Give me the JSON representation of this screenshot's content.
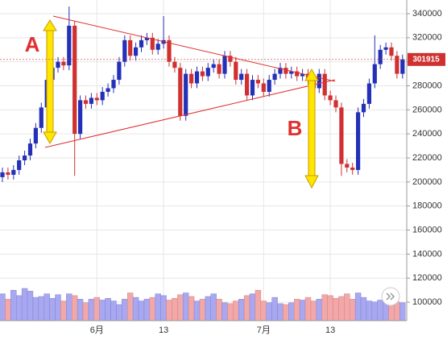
{
  "chart_data": {
    "type": "candlestick",
    "categories": [
      null,
      null,
      null,
      null,
      null,
      null,
      null,
      null,
      null,
      null,
      null,
      null,
      null,
      null,
      null,
      null,
      null,
      "6月",
      null,
      null,
      null,
      null,
      null,
      null,
      null,
      null,
      null,
      null,
      null,
      "13",
      null,
      null,
      null,
      null,
      null,
      null,
      null,
      null,
      null,
      null,
      null,
      null,
      null,
      null,
      null,
      null,
      null,
      "7月",
      null,
      null,
      null,
      null,
      null,
      null,
      null,
      null,
      null,
      null,
      null,
      "13",
      null,
      null,
      null,
      null,
      null,
      null,
      null,
      null,
      null,
      null,
      null,
      null,
      null
    ],
    "open": [
      204000,
      208000,
      206000,
      210000,
      218000,
      222000,
      232000,
      245000,
      262000,
      285000,
      295000,
      300000,
      297000,
      330000,
      240000,
      268000,
      265000,
      270000,
      268000,
      275000,
      278000,
      285000,
      300000,
      318000,
      305000,
      312000,
      318000,
      320000,
      310000,
      315000,
      318000,
      300000,
      295000,
      255000,
      290000,
      282000,
      292000,
      288000,
      295000,
      298000,
      290000,
      305000,
      300000,
      285000,
      290000,
      272000,
      285000,
      282000,
      275000,
      285000,
      290000,
      295000,
      290000,
      292000,
      288000,
      290000,
      285000,
      278000,
      290000,
      272000,
      268000,
      262000,
      215000,
      212000,
      210000,
      258000,
      265000,
      282000,
      298000,
      310000,
      312000,
      305000,
      290000
    ],
    "high": [
      212000,
      212000,
      214000,
      222000,
      226000,
      236000,
      249000,
      266000,
      289000,
      299000,
      304000,
      304000,
      346000,
      334000,
      272000,
      272000,
      274000,
      274000,
      279000,
      282000,
      289000,
      304000,
      322000,
      322000,
      316000,
      322000,
      324000,
      324000,
      319000,
      338000,
      322000,
      304000,
      299000,
      294000,
      294000,
      296000,
      296000,
      299000,
      302000,
      302000,
      309000,
      309000,
      304000,
      294000,
      294000,
      289000,
      289000,
      286000,
      289000,
      294000,
      299000,
      299000,
      296000,
      296000,
      294000,
      294000,
      289000,
      294000,
      294000,
      276000,
      272000,
      266000,
      219000,
      216000,
      262000,
      269000,
      286000,
      322000,
      314000,
      316000,
      316000,
      309000,
      306000
    ],
    "low": [
      200000,
      202000,
      202000,
      206000,
      214000,
      218000,
      228000,
      241000,
      258000,
      281000,
      291000,
      293000,
      293000,
      205000,
      236000,
      261000,
      261000,
      264000,
      264000,
      271000,
      274000,
      281000,
      296000,
      301000,
      301000,
      308000,
      314000,
      306000,
      306000,
      311000,
      296000,
      291000,
      251000,
      251000,
      278000,
      278000,
      284000,
      284000,
      291000,
      286000,
      286000,
      296000,
      281000,
      281000,
      268000,
      268000,
      278000,
      271000,
      271000,
      281000,
      286000,
      286000,
      286000,
      284000,
      284000,
      281000,
      274000,
      274000,
      268000,
      264000,
      258000,
      205000,
      208000,
      206000,
      206000,
      254000,
      261000,
      278000,
      294000,
      306000,
      301000,
      286000,
      286000
    ],
    "close": [
      208000,
      206000,
      210000,
      218000,
      222000,
      232000,
      245000,
      262000,
      285000,
      295000,
      300000,
      297000,
      330000,
      240000,
      268000,
      265000,
      270000,
      268000,
      275000,
      278000,
      285000,
      300000,
      318000,
      305000,
      312000,
      318000,
      320000,
      310000,
      315000,
      318000,
      300000,
      295000,
      255000,
      290000,
      282000,
      292000,
      288000,
      295000,
      298000,
      290000,
      305000,
      300000,
      285000,
      290000,
      272000,
      285000,
      282000,
      275000,
      285000,
      290000,
      295000,
      290000,
      292000,
      288000,
      290000,
      285000,
      278000,
      290000,
      272000,
      268000,
      262000,
      215000,
      212000,
      210000,
      258000,
      265000,
      282000,
      298000,
      310000,
      312000,
      305000,
      290000,
      301915
    ],
    "volume": [
      30,
      24,
      34,
      28,
      36,
      33,
      26,
      27,
      30,
      25,
      29,
      22,
      30,
      28,
      24,
      20,
      24,
      26,
      23,
      25,
      22,
      18,
      24,
      31,
      26,
      22,
      24,
      26,
      30,
      28,
      23,
      25,
      29,
      31,
      27,
      22,
      24,
      27,
      30,
      24,
      20,
      19,
      22,
      24,
      28,
      30,
      34,
      22,
      20,
      26,
      19,
      18,
      20,
      24,
      23,
      26,
      22,
      24,
      29,
      28,
      25,
      27,
      30,
      24,
      31,
      26,
      22,
      21,
      23,
      27,
      22,
      21,
      20
    ],
    "up_color": "#2430b8",
    "down_color": "#d03030",
    "ylim": [
      84600,
      351400
    ],
    "yticks": [
      100000,
      120000,
      140000,
      160000,
      180000,
      200000,
      220000,
      240000,
      260000,
      280000,
      300000,
      320000,
      340000
    ],
    "grid": true,
    "last_price": 301915,
    "annotations": [
      "A",
      "B"
    ]
  }
}
